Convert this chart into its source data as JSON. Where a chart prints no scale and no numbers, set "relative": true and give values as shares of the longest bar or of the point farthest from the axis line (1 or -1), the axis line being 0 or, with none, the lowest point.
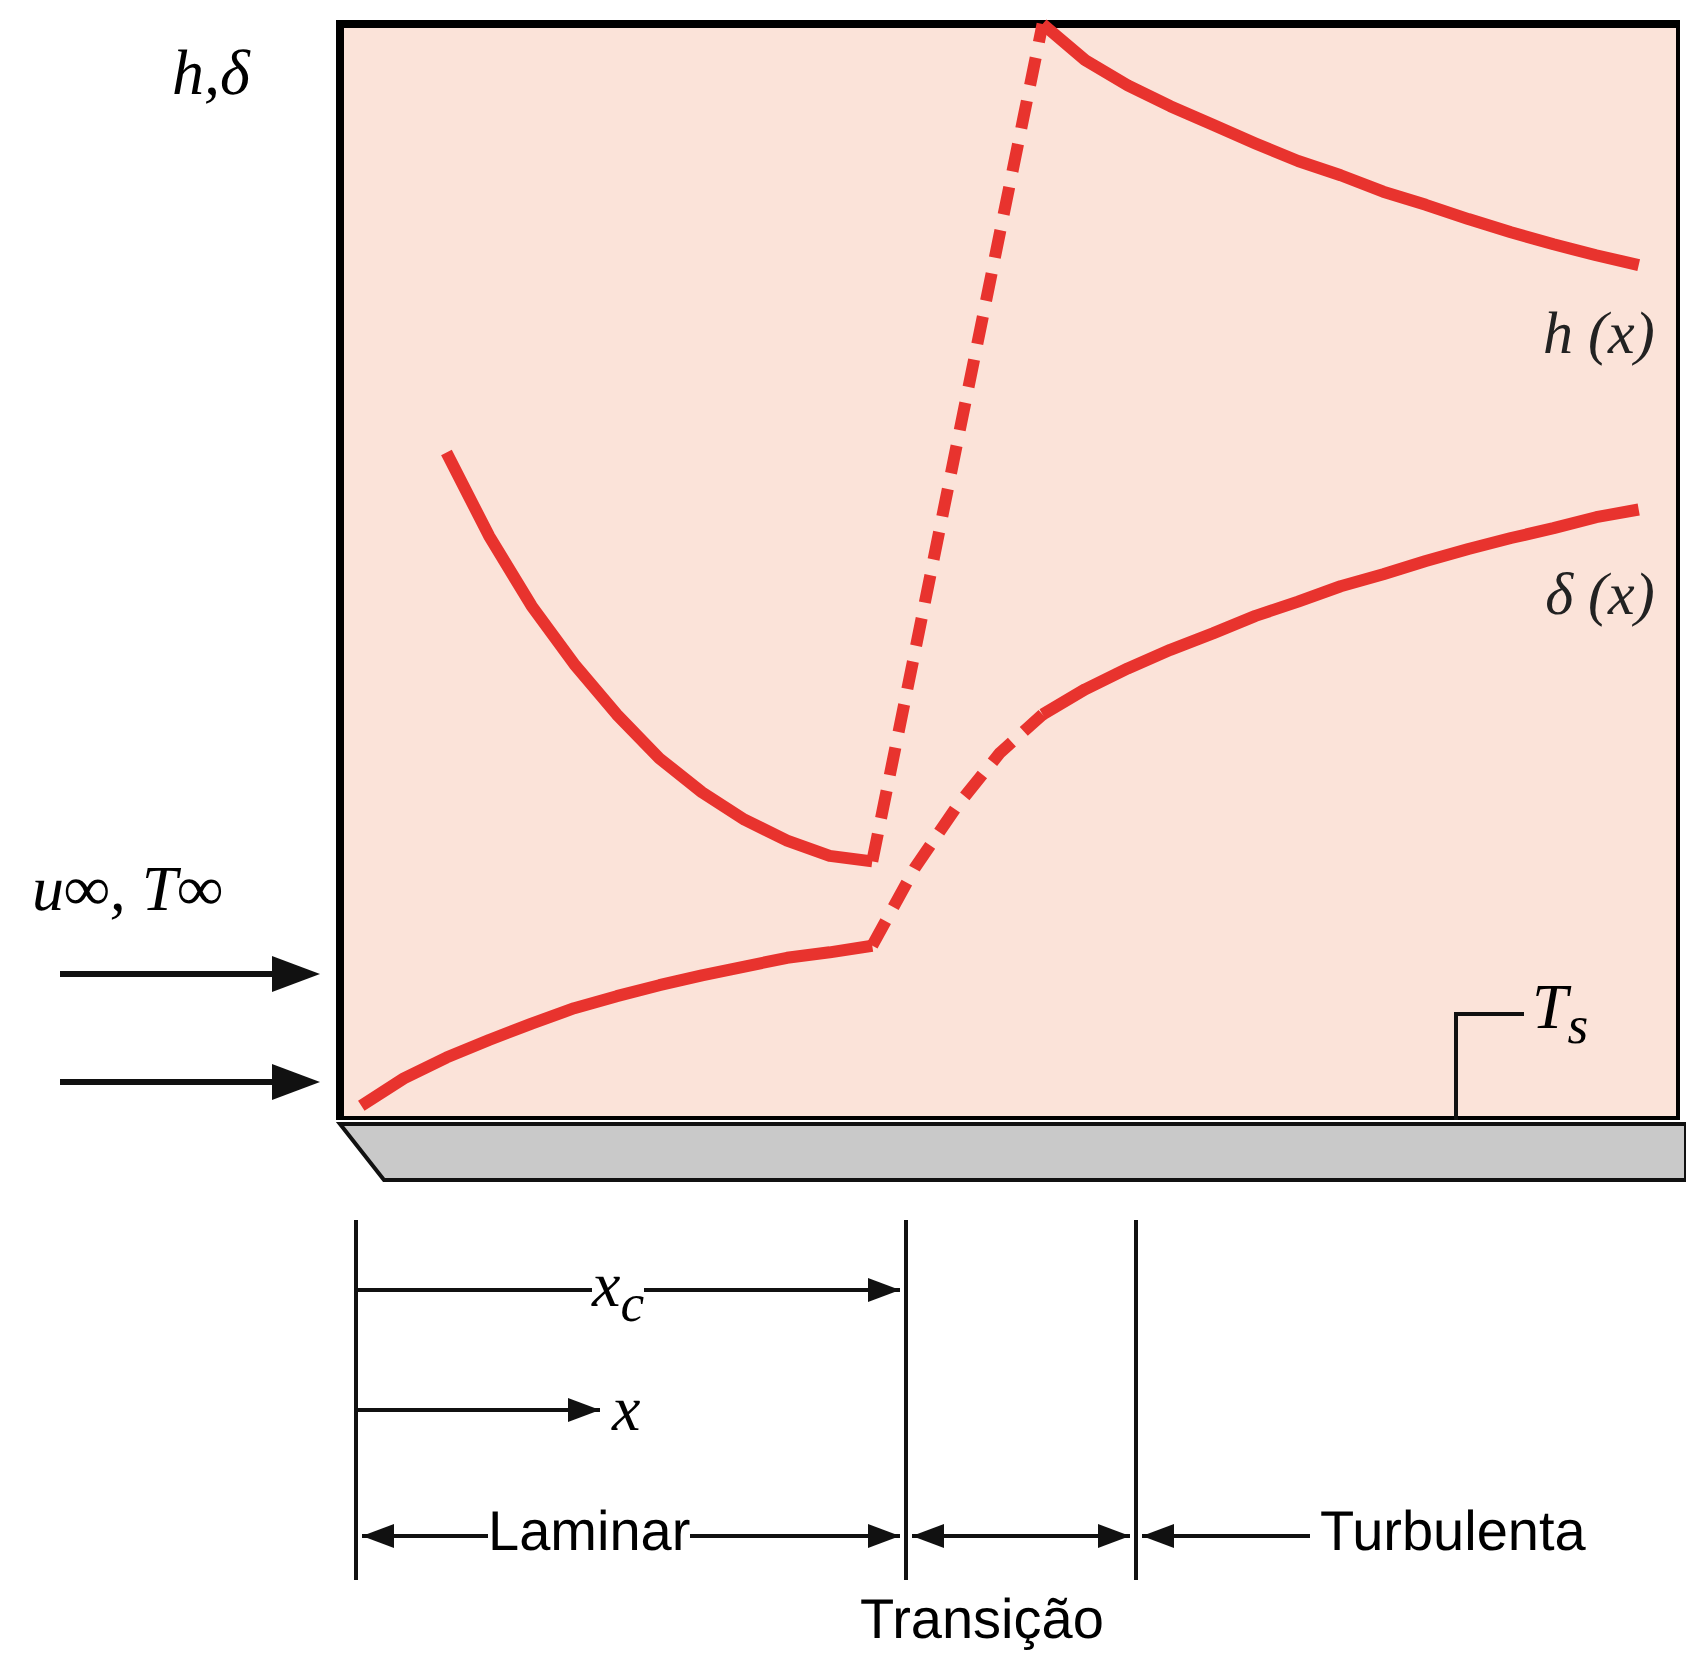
{
  "chart_data": {
    "type": "line",
    "relative": true,
    "ylabel": "h,δ",
    "categories": [
      null,
      null,
      null,
      null,
      null,
      null,
      null,
      null,
      null,
      null,
      null,
      null,
      null,
      null,
      null,
      null,
      null,
      null,
      null,
      null,
      null,
      null,
      null,
      null,
      null,
      null,
      null,
      null,
      null,
      null,
      null
    ],
    "series": [
      {
        "color": "#e8332e",
        "line_style": "solid",
        "values": [
          null,
          null,
          0.609,
          0.533,
          0.469,
          0.416,
          0.37,
          0.33,
          0.299,
          0.274,
          0.255,
          0.241,
          0.236,
          null,
          null,
          null,
          null,
          null,
          null,
          null,
          null,
          null,
          null,
          null,
          null,
          null,
          null,
          null,
          null,
          null,
          null
        ]
      },
      {
        "color": "#e8332e",
        "line_style": "dashed",
        "values": [
          null,
          null,
          null,
          null,
          null,
          null,
          null,
          null,
          null,
          null,
          null,
          null,
          0.236,
          0.427,
          0.619,
          0.81,
          1,
          null,
          null,
          null,
          null,
          null,
          null,
          null,
          null,
          null,
          null,
          null,
          null,
          null,
          null
        ]
      },
      {
        "name": "h (x)",
        "color": "#e8332e",
        "line_style": "solid",
        "values": [
          null,
          null,
          null,
          null,
          null,
          null,
          null,
          null,
          null,
          null,
          null,
          null,
          null,
          null,
          null,
          null,
          1,
          0.967,
          0.944,
          0.925,
          0.908,
          0.891,
          0.875,
          0.862,
          0.847,
          0.835,
          0.822,
          0.81,
          0.799,
          0.789,
          0.78
        ]
      },
      {
        "color": "#e8332e",
        "line_style": "solid",
        "values": [
          0.013,
          0.038,
          0.057,
          0.073,
          0.088,
          0.102,
          0.113,
          0.123,
          0.132,
          0.14,
          0.148,
          0.153,
          0.159,
          null,
          null,
          null,
          null,
          null,
          null,
          null,
          null,
          null,
          null,
          null,
          null,
          null,
          null,
          null,
          null,
          null,
          null
        ]
      },
      {
        "color": "#e8332e",
        "line_style": "dashed",
        "values": [
          null,
          null,
          null,
          null,
          null,
          null,
          null,
          null,
          null,
          null,
          null,
          null,
          0.159,
          0.23,
          0.287,
          0.335,
          0.37,
          null,
          null,
          null,
          null,
          null,
          null,
          null,
          null,
          null,
          null,
          null,
          null,
          null,
          null
        ]
      },
      {
        "name": "δ (x)",
        "color": "#e8332e",
        "line_style": "solid",
        "values": [
          null,
          null,
          null,
          null,
          null,
          null,
          null,
          null,
          null,
          null,
          null,
          null,
          null,
          null,
          null,
          null,
          0.37,
          0.393,
          0.412,
          0.429,
          0.444,
          0.46,
          0.473,
          0.487,
          0.498,
          0.51,
          0.521,
          0.531,
          0.54,
          0.55,
          0.557
        ]
      }
    ],
    "annotations": [
      "u∞, T∞",
      "T$_{s}$",
      "x$_{c}$",
      "x",
      "Laminar",
      "Transição",
      "Turbulenta"
    ]
  }
}
